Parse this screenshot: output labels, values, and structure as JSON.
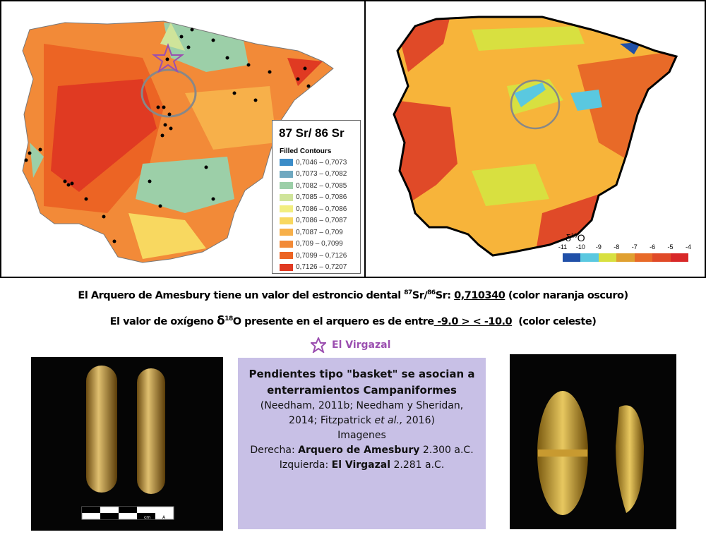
{
  "sr_map": {
    "legend_title": "87 Sr/ 86 Sr",
    "legend_subtitle": "Filled Contours",
    "legend": [
      {
        "label": "0,7046 – 0,7073",
        "color": "#3a8cc8"
      },
      {
        "label": "0,7073 – 0,7082",
        "color": "#6fa8c0"
      },
      {
        "label": "0,7082 – 0,7085",
        "color": "#9ccfa8"
      },
      {
        "label": "0,7085 – 0,7086",
        "color": "#cfe49a"
      },
      {
        "label": "0,7086 – 0,7086",
        "color": "#f2ee80"
      },
      {
        "label": "0,7086 – 0,7087",
        "color": "#f8d860"
      },
      {
        "label": "0,7087 – 0,709",
        "color": "#f7b04a"
      },
      {
        "label": "0,709 – 0,7099",
        "color": "#f28a38"
      },
      {
        "label": "0,7099 – 0,7126",
        "color": "#ec6424"
      },
      {
        "label": "0,7126 – 0,7207",
        "color": "#e03a22"
      }
    ]
  },
  "o_map": {
    "title_prefix": "δ",
    "title_sup": "18",
    "title_suffix": "O",
    "ticks": [
      "-11",
      "-10",
      "-9",
      "-8",
      "-7",
      "-6",
      "-5",
      "-4"
    ],
    "colors": [
      "#2050a8",
      "#5ac8e0",
      "#d8e040",
      "#e0a030",
      "#e86a28",
      "#e04a28",
      "#d82828"
    ]
  },
  "text": {
    "line1_a": "El Arquero de Amesbury tiene un valor del estroncio dental ",
    "line1_sup1": "87",
    "line1_b": "Sr/",
    "line1_sup2": "86",
    "line1_c": "Sr: ",
    "line1_value": "0,710340",
    "line1_d": " (color naranja oscuro)",
    "line2_a": "El valor de oxígeno ",
    "line2_delta": "δ",
    "line2_sup": "18",
    "line2_b": "O presente en el arquero es de entre",
    "line2_value": " -9.0 > < -10.0",
    "line2_c": "  (color celeste)",
    "star_label": "El Virgazal"
  },
  "box": {
    "title": "Pendientes tipo \"basket\" se asocian a enterramientos Campaniformes",
    "refs_a": "(Needham, 2011b; Needham y Sheridan, 2014; Fitzpatrick ",
    "refs_etal": "et al.,",
    "refs_b": " 2016)",
    "imagenes": "Imagenes",
    "right_label": "Derecha: ",
    "right_name": "Arquero de Amesbury",
    "right_date": " 2.300 a.C.",
    "left_label": "Izquierda: ",
    "left_name": "El Virgazal",
    "left_date": " 2.281 a.C."
  },
  "scale_bar": {
    "labels": [
      "5",
      "cm",
      "A"
    ]
  },
  "colors": {
    "star": "#9b4fb0",
    "box_bg": "#c8c0e6"
  }
}
